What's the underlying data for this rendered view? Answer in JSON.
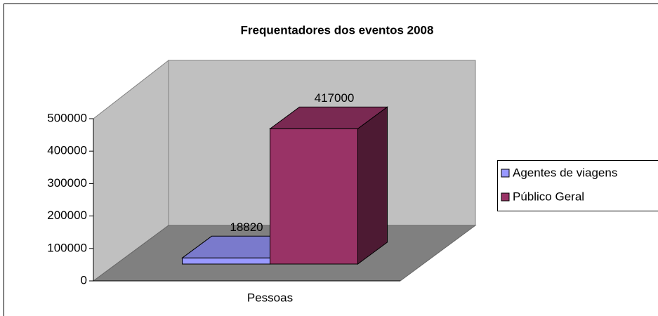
{
  "chart_data": {
    "type": "bar3d",
    "title": "Frequentadores dos eventos 2008",
    "categories": [
      "Pessoas"
    ],
    "series": [
      {
        "name": "Agentes de viagens",
        "color": "#9999ff",
        "values": [
          18820
        ]
      },
      {
        "name": "Público Geral",
        "color": "#993366",
        "values": [
          417000
        ]
      }
    ],
    "ylim": [
      0,
      500000
    ],
    "yticks": [
      0,
      100000,
      200000,
      300000,
      400000,
      500000
    ],
    "legend": "right"
  }
}
